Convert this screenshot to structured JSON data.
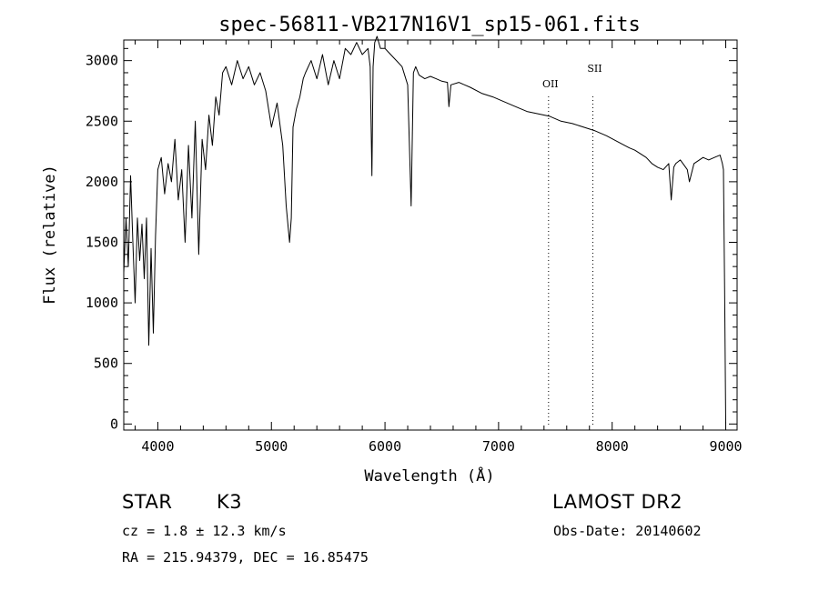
{
  "chart_data": {
    "type": "line",
    "title": "spec-56811-VB217N16V1_sp15-061.fits",
    "xlabel": "Wavelength (Å)",
    "ylabel": "Flux (relative)",
    "xlim": [
      3700,
      9100
    ],
    "ylim": [
      -50,
      3170
    ],
    "xticks": [
      4000,
      5000,
      6000,
      7000,
      8000,
      9000
    ],
    "yticks": [
      0,
      500,
      1000,
      1500,
      2000,
      2500,
      3000
    ],
    "grid": false,
    "series": [
      {
        "x": [
          3700,
          3720,
          3740,
          3760,
          3780,
          3800,
          3820,
          3840,
          3860,
          3880,
          3900,
          3920,
          3940,
          3960,
          3980,
          4000,
          4030,
          4060,
          4090,
          4120,
          4150,
          4180,
          4210,
          4240,
          4270,
          4300,
          4330,
          4360,
          4390,
          4420,
          4450,
          4480,
          4510,
          4540,
          4570,
          4600,
          4650,
          4700,
          4750,
          4800,
          4850,
          4900,
          4950,
          5000,
          5050,
          5100,
          5130,
          5160,
          5175,
          5190,
          5220,
          5250,
          5280,
          5300,
          5350,
          5400,
          5450,
          5500,
          5550,
          5600,
          5650,
          5700,
          5750,
          5800,
          5850,
          5870,
          5885,
          5895,
          5910,
          5930,
          5960,
          6000,
          6050,
          6100,
          6150,
          6200,
          6230,
          6250,
          6270,
          6300,
          6350,
          6400,
          6450,
          6500,
          6550,
          6563,
          6580,
          6650,
          6750,
          6850,
          6950,
          7050,
          7150,
          7250,
          7350,
          7450,
          7550,
          7650,
          7750,
          7850,
          7950,
          8050,
          8150,
          8200,
          8250,
          8300,
          8350,
          8400,
          8450,
          8498,
          8520,
          8542,
          8560,
          8600,
          8662,
          8680,
          8720,
          8800,
          8850,
          8900,
          8950,
          8970,
          8980,
          8990,
          9000
        ],
        "values": [
          1250,
          1700,
          1300,
          2050,
          1500,
          1000,
          1700,
          1350,
          1650,
          1200,
          1700,
          650,
          1450,
          750,
          1550,
          2100,
          2200,
          1900,
          2150,
          2000,
          2350,
          1850,
          2100,
          1500,
          2300,
          1700,
          2500,
          1400,
          2350,
          2100,
          2550,
          2300,
          2700,
          2550,
          2900,
          2950,
          2800,
          3000,
          2850,
          2950,
          2800,
          2900,
          2750,
          2450,
          2650,
          2300,
          1800,
          1500,
          1700,
          2450,
          2600,
          2700,
          2850,
          2900,
          3000,
          2850,
          3050,
          2800,
          3000,
          2850,
          3100,
          3050,
          3150,
          3050,
          3100,
          2950,
          2050,
          2950,
          3150,
          3200,
          3100,
          3100,
          3050,
          3000,
          2950,
          2800,
          1800,
          2900,
          2950,
          2880,
          2850,
          2870,
          2850,
          2830,
          2820,
          2620,
          2800,
          2820,
          2780,
          2730,
          2700,
          2660,
          2620,
          2580,
          2560,
          2540,
          2500,
          2480,
          2450,
          2420,
          2380,
          2330,
          2280,
          2260,
          2230,
          2200,
          2150,
          2120,
          2100,
          2150,
          1850,
          2120,
          2150,
          2180,
          2100,
          2000,
          2150,
          2200,
          2180,
          2200,
          2220,
          2150,
          2100,
          1100,
          0
        ]
      }
    ],
    "annotations": [
      {
        "label": "OII",
        "x": 7440
      },
      {
        "label": "SII",
        "x": 7830
      }
    ]
  },
  "info": {
    "object_class": "STAR",
    "subclass": "K3",
    "survey": "LAMOST DR2",
    "velocity": "cz = 1.8 ± 12.3 km/s",
    "obs_date": "Obs-Date: 20140602",
    "coords": "RA = 215.94379, DEC =  16.85475"
  }
}
